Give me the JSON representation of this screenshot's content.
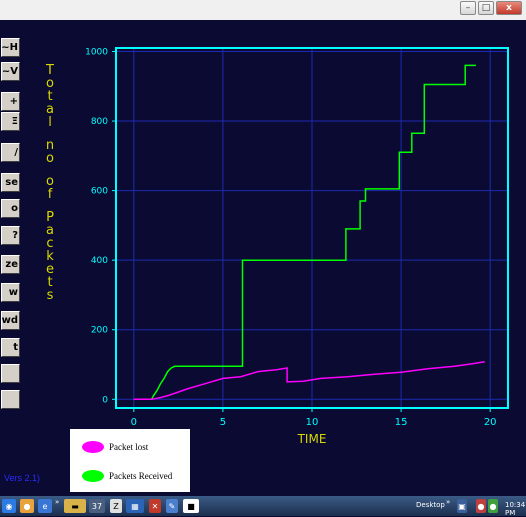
{
  "window": {
    "min_icon": "minimize-icon",
    "max_icon": "maximize-icon",
    "close_label": "x"
  },
  "toolbar": {
    "buttons": [
      "~H",
      "~V",
      "+",
      "Ξ",
      "/",
      "se",
      "o",
      "?",
      "ze",
      "w",
      "wd",
      "t",
      "",
      ""
    ]
  },
  "ylabel_letters": [
    "T",
    "o",
    "t",
    "a",
    "l",
    "",
    "n",
    "o",
    "",
    "o",
    "f",
    "",
    "P",
    "a",
    "c",
    "k",
    "e",
    "t",
    "s"
  ],
  "status_text": "Vers 2.1)",
  "legend": [
    {
      "label": "Packet lost",
      "color": "#ff00ff"
    },
    {
      "label": "Packets  Received",
      "color": "#00ff00"
    }
  ],
  "taskbar": {
    "desktop_label": "Desktop",
    "clock": "10:34 PM",
    "items": [
      "»",
      "»",
      "»",
      "37"
    ]
  },
  "chart_data": {
    "type": "line",
    "xlabel": "TIME",
    "ylabel": "Total no of Packets",
    "xlim": [
      -1,
      21
    ],
    "ylim": [
      -25,
      1010
    ],
    "xticks": [
      0,
      5,
      10,
      15,
      20
    ],
    "yticks": [
      0,
      200,
      400,
      600,
      800,
      1000
    ],
    "grid": true,
    "colors": {
      "background": "#0a0a32",
      "frame": "#00ffff",
      "grid": "#1d2bb0",
      "ticks": "#00ffff",
      "xlabel": "#d8d800",
      "ylabel": "#d8d800"
    },
    "series": [
      {
        "name": "Packets  Received",
        "color": "#00ff00",
        "step": true,
        "points": [
          [
            0,
            0
          ],
          [
            1,
            0
          ],
          [
            1.1,
            10
          ],
          [
            1.3,
            25
          ],
          [
            1.5,
            45
          ],
          [
            1.7,
            60
          ],
          [
            1.9,
            80
          ],
          [
            2.1,
            90
          ],
          [
            2.3,
            95
          ],
          [
            6.1,
            95
          ],
          [
            6.1,
            400
          ],
          [
            11.9,
            400
          ],
          [
            11.9,
            490
          ],
          [
            12.7,
            490
          ],
          [
            12.7,
            570
          ],
          [
            13.0,
            570
          ],
          [
            13.0,
            605
          ],
          [
            14.9,
            605
          ],
          [
            14.9,
            710
          ],
          [
            15.6,
            710
          ],
          [
            15.6,
            765
          ],
          [
            16.3,
            765
          ],
          [
            16.3,
            905
          ],
          [
            18.6,
            905
          ],
          [
            18.6,
            960
          ],
          [
            19.2,
            960
          ]
        ]
      },
      {
        "name": "Packet lost",
        "color": "#ff00ff",
        "step": false,
        "points": [
          [
            0,
            0
          ],
          [
            1.0,
            0
          ],
          [
            1.5,
            5
          ],
          [
            2.0,
            12
          ],
          [
            3.0,
            30
          ],
          [
            4.0,
            45
          ],
          [
            5.0,
            60
          ],
          [
            6.0,
            65
          ],
          [
            7.0,
            80
          ],
          [
            8.0,
            85
          ],
          [
            8.6,
            90
          ],
          [
            8.6,
            50
          ],
          [
            9.5,
            52
          ],
          [
            10.5,
            60
          ],
          [
            12,
            65
          ],
          [
            13.5,
            72
          ],
          [
            15,
            78
          ],
          [
            16.5,
            88
          ],
          [
            18,
            95
          ],
          [
            19,
            102
          ],
          [
            19.7,
            108
          ]
        ]
      }
    ]
  }
}
